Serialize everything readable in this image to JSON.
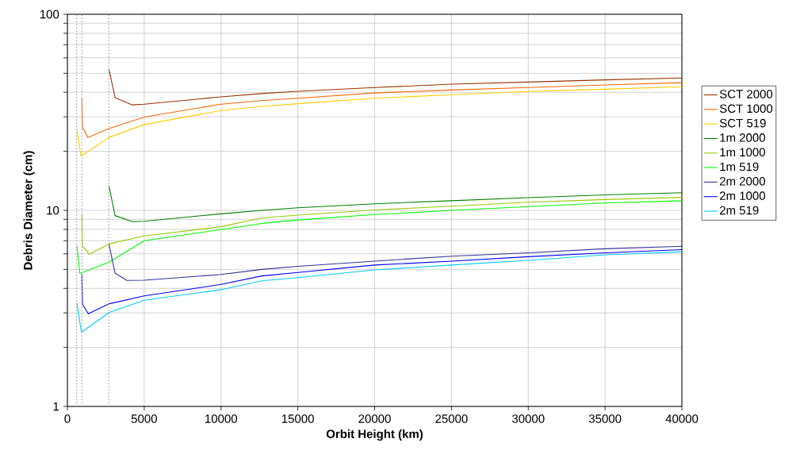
{
  "chart_data": {
    "type": "line",
    "xlabel": "Orbit Height (km)",
    "ylabel": "Debris Diameter (cm)",
    "log": "y",
    "xlim": [
      0,
      40000
    ],
    "xticks": [
      0,
      5000,
      10000,
      15000,
      20000,
      25000,
      30000,
      35000,
      40000
    ],
    "ylim": [
      1,
      100
    ],
    "yticks": [
      1,
      10,
      100
    ],
    "grid": true,
    "legend": "right",
    "marker": "none",
    "line_style": "solid",
    "ref_lines": [
      {
        "axis": "x",
        "value": 600,
        "color": "#a6a6a6",
        "line_style": "dotted"
      },
      {
        "axis": "x",
        "value": 950,
        "color": "#a6a6a6",
        "line_style": "dotted"
      },
      {
        "axis": "x",
        "value": 2700,
        "color": "#a6a6a6",
        "line_style": "dotted"
      }
    ],
    "series": [
      {
        "name": "SCT 2000",
        "color": "#993300",
        "x": [
          2700,
          3100,
          4230,
          5000,
          10000,
          12650,
          15000,
          20000,
          25000,
          30000,
          35000,
          40000
        ],
        "values": [
          52.7,
          37.6,
          34.5,
          34.8,
          37.9,
          39.4,
          40.5,
          42.3,
          44.0,
          45.1,
          46.3,
          47.3
        ]
      },
      {
        "name": "SCT 1000",
        "color": "#ff6600",
        "x": [
          940,
          980,
          1330,
          2730,
          5000,
          10000,
          12650,
          15000,
          20000,
          25000,
          30000,
          35000,
          40000
        ],
        "values": [
          37.7,
          26.6,
          23.5,
          26.2,
          29.9,
          34.8,
          36.3,
          37.3,
          39.7,
          41.1,
          42.3,
          43.6,
          44.8
        ]
      },
      {
        "name": "SCT 519",
        "color": "#ffcc00",
        "x": [
          620,
          880,
          2730,
          5000,
          10000,
          12650,
          15000,
          20000,
          25000,
          30000,
          35000,
          40000
        ],
        "values": [
          26.0,
          18.9,
          23.6,
          27.4,
          32.3,
          33.9,
          35.0,
          37.3,
          38.9,
          40.4,
          41.5,
          42.7
        ]
      },
      {
        "name": "1m 2000",
        "color": "#008000",
        "x": [
          2700,
          3100,
          4230,
          5000,
          10000,
          12650,
          15000,
          20000,
          25000,
          30000,
          35000,
          40000
        ],
        "values": [
          13.4,
          9.4,
          8.75,
          8.8,
          9.6,
          10.0,
          10.3,
          10.8,
          11.2,
          11.6,
          12.0,
          12.3
        ]
      },
      {
        "name": "1m 1000",
        "color": "#99cc00",
        "x": [
          940,
          980,
          1430,
          2730,
          5000,
          10000,
          12650,
          15000,
          20000,
          25000,
          30000,
          35000,
          40000
        ],
        "values": [
          9.6,
          6.6,
          5.97,
          6.75,
          7.4,
          8.25,
          9.15,
          9.45,
          10.05,
          10.5,
          11.0,
          11.35,
          11.65
        ]
      },
      {
        "name": "1m 519",
        "color": "#00ff00",
        "x": [
          620,
          810,
          2730,
          5000,
          10000,
          12650,
          15000,
          20000,
          25000,
          30000,
          35000,
          40000
        ],
        "values": [
          6.6,
          4.77,
          5.46,
          7.0,
          7.98,
          8.58,
          8.93,
          9.52,
          10.0,
          10.45,
          10.9,
          11.2
        ]
      },
      {
        "name": "2m 2000",
        "color": "#333399",
        "x": [
          2700,
          3100,
          3870,
          5000,
          10000,
          12650,
          15000,
          20000,
          25000,
          30000,
          35000,
          40000
        ],
        "values": [
          6.75,
          4.79,
          4.39,
          4.4,
          4.71,
          5.0,
          5.18,
          5.51,
          5.84,
          6.07,
          6.37,
          6.56
        ]
      },
      {
        "name": "2m 1000",
        "color": "#0000ff",
        "x": [
          940,
          980,
          1360,
          2730,
          5000,
          10000,
          12650,
          15000,
          20000,
          25000,
          30000,
          35000,
          40000
        ],
        "values": [
          4.74,
          3.32,
          2.97,
          3.34,
          3.66,
          4.19,
          4.63,
          4.82,
          5.26,
          5.51,
          5.8,
          6.07,
          6.3
        ]
      },
      {
        "name": "2m 519",
        "color": "#00ccff",
        "x": [
          620,
          910,
          2730,
          5000,
          10000,
          12650,
          15000,
          20000,
          25000,
          30000,
          35000,
          40000
        ],
        "values": [
          3.37,
          2.39,
          3.02,
          3.48,
          3.94,
          4.37,
          4.54,
          4.97,
          5.26,
          5.56,
          5.93,
          6.15
        ]
      }
    ]
  }
}
